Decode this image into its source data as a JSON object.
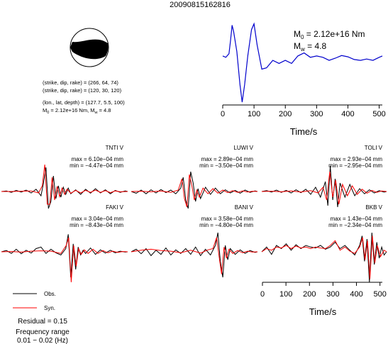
{
  "event_id": "20090815162816",
  "mechanism": {
    "line1": "(strike, dip, rake) = (266, 64, 74)",
    "line2": "(strike, dip, rake) = (120, 30, 120)",
    "line3": "(lon., lat, depth) = (127.7, 5.5, 100)",
    "line4_m0": "M",
    "line4_m0_sub": "0",
    "line4_m0_rest": " = 2.12e+16 Nm, M",
    "line4_mw_sub": "w",
    "line4_mw_rest": " = 4.8"
  },
  "stf": {
    "m0_label": "M",
    "m0_sub": "0",
    "m0_rest": " = 2.12e+16 Nm",
    "mw_label": "M",
    "mw_sub": "w",
    "mw_rest": " = 4.8",
    "xlabel": "Time/s",
    "xticks": [
      "0",
      "100",
      "200",
      "300",
      "400",
      "500"
    ]
  },
  "bottom_axis": {
    "xlabel": "Time/s",
    "xticks": [
      "0",
      "100",
      "200",
      "300",
      "400",
      "500"
    ]
  },
  "legend": {
    "obs_label": "Obs.",
    "syn_label": "Syn.",
    "residual": "Residual = 0.15",
    "freq_title": "Frequency range",
    "freq_value": "0.01 − 0.02 (Hz)"
  },
  "colors": {
    "observed": "#000000",
    "synthetic": "#ff0000",
    "stf_line": "#0000cc",
    "beachball_fill": "#000000"
  },
  "stations": [
    {
      "name": "TNTI V",
      "max": "max = 6.10e−04 mm",
      "min": "min = −4.47e−04 mm"
    },
    {
      "name": "LUWI V",
      "max": "max = 2.89e−04 mm",
      "min": "min = −3.50e−04 mm"
    },
    {
      "name": "TOLI V",
      "max": "max = 2.93e−04 mm",
      "min": "min = −2.95e−04 mm"
    },
    {
      "name": "FAKI V",
      "max": "max = 3.04e−04 mm",
      "min": "min = −8.43e−04 mm"
    },
    {
      "name": "BANI V",
      "max": "max = 3.58e−04 mm",
      "min": "min = −4.80e−04 mm"
    },
    {
      "name": "BKB V",
      "max": "max = 1.43e−04 mm",
      "min": "min = −2.34e−04 mm"
    }
  ],
  "chart_data": [
    {
      "type": "line",
      "title": "",
      "xlabel": "Time/s",
      "ylabel": "",
      "xlim": [
        0,
        510
      ],
      "ylim": [
        -1.0,
        1.0
      ],
      "grid": false,
      "series": [
        {
          "x": [
            0,
            10,
            20,
            25,
            30,
            35,
            45,
            55,
            62,
            70,
            80,
            92,
            100,
            110,
            125,
            140,
            160,
            180,
            200,
            220,
            240,
            260,
            280,
            300,
            320,
            340,
            360,
            380,
            400,
            420,
            440,
            460,
            480,
            500,
            510
          ],
          "values": [
            0.05,
            0.02,
            0.1,
            0.4,
            0.75,
            0.6,
            0.15,
            -0.6,
            -1.0,
            -0.6,
            0.05,
            0.65,
            0.78,
            0.3,
            -0.25,
            -0.22,
            -0.05,
            -0.12,
            -0.05,
            -0.12,
            0.05,
            0.12,
            0.02,
            0.05,
            0.02,
            -0.05,
            0.0,
            0.06,
            0.03,
            -0.03,
            -0.05,
            -0.02,
            -0.05,
            0.02,
            0.05
          ]
        }
      ]
    },
    {
      "type": "line",
      "title": "TNTI V",
      "xlim": [
        0,
        510
      ],
      "ylim": [
        -1,
        1
      ],
      "series": [
        {
          "name": "Obs.",
          "x": [
            0,
            20,
            40,
            60,
            80,
            100,
            120,
            140,
            160,
            170,
            180,
            190,
            200,
            210,
            220,
            230,
            240,
            250,
            260,
            270,
            280,
            300,
            320,
            340,
            360,
            380,
            400,
            420,
            440,
            460,
            480,
            500,
            510
          ],
          "values": [
            0.0,
            0.02,
            -0.03,
            0.04,
            -0.02,
            0.05,
            -0.05,
            0.08,
            -0.15,
            0.3,
            0.85,
            -0.6,
            -0.35,
            0.55,
            -0.25,
            0.2,
            -0.2,
            0.15,
            -0.1,
            0.12,
            -0.08,
            0.06,
            -0.1,
            0.08,
            -0.06,
            0.1,
            -0.05,
            0.06,
            -0.08,
            0.04,
            -0.03,
            0.02,
            0.0
          ]
        },
        {
          "name": "Syn.",
          "x": [
            0,
            40,
            80,
            120,
            150,
            165,
            175,
            185,
            195,
            205,
            215,
            225,
            235,
            245,
            255,
            265,
            280,
            300,
            320,
            340,
            360,
            380,
            400,
            420,
            440,
            460,
            480,
            510
          ],
          "values": [
            0.0,
            0.0,
            0.01,
            0.02,
            -0.05,
            0.2,
            0.95,
            -0.45,
            -0.45,
            0.5,
            -0.3,
            0.18,
            -0.18,
            0.12,
            -0.1,
            0.08,
            -0.06,
            0.04,
            -0.05,
            0.04,
            -0.03,
            0.05,
            -0.03,
            0.03,
            -0.04,
            0.02,
            -0.01,
            0.0
          ]
        }
      ]
    },
    {
      "type": "line",
      "title": "LUWI V",
      "xlim": [
        0,
        510
      ],
      "ylim": [
        -1,
        1
      ],
      "series": [
        {
          "name": "Obs.",
          "x": [
            0,
            20,
            40,
            60,
            80,
            100,
            120,
            140,
            160,
            180,
            200,
            210,
            220,
            230,
            240,
            250,
            260,
            270,
            280,
            300,
            320,
            340,
            360,
            380,
            400,
            420,
            440,
            460,
            480,
            500,
            510
          ],
          "values": [
            0.0,
            -0.06,
            0.05,
            -0.08,
            0.06,
            -0.05,
            0.07,
            -0.04,
            0.05,
            -0.08,
            0.12,
            0.5,
            -0.3,
            -0.6,
            0.7,
            0.3,
            -0.35,
            0.1,
            -0.25,
            0.15,
            -0.1,
            0.12,
            -0.08,
            0.06,
            -0.05,
            0.04,
            -0.06,
            0.05,
            -0.03,
            0.02,
            0.0
          ]
        },
        {
          "name": "Syn.",
          "x": [
            0,
            40,
            80,
            120,
            160,
            190,
            205,
            215,
            225,
            235,
            245,
            255,
            265,
            275,
            290,
            310,
            330,
            350,
            370,
            390,
            410,
            430,
            450,
            470,
            490,
            510
          ],
          "values": [
            0.0,
            0.01,
            -0.01,
            0.02,
            -0.03,
            0.05,
            0.45,
            -0.25,
            -0.55,
            0.6,
            0.2,
            -0.3,
            0.05,
            -0.2,
            0.12,
            -0.08,
            0.1,
            -0.06,
            0.05,
            -0.04,
            0.03,
            -0.03,
            0.02,
            -0.02,
            0.01,
            0.0
          ]
        }
      ]
    },
    {
      "type": "line",
      "title": "TOLI V",
      "xlim": [
        0,
        510
      ],
      "ylim": [
        -1,
        1
      ],
      "series": [
        {
          "name": "Obs.",
          "x": [
            0,
            20,
            40,
            60,
            80,
            100,
            120,
            140,
            160,
            180,
            200,
            220,
            240,
            260,
            270,
            280,
            290,
            300,
            310,
            320,
            340,
            360,
            380,
            400,
            420,
            440,
            460,
            480,
            500,
            510
          ],
          "values": [
            0.0,
            0.03,
            -0.02,
            0.05,
            -0.03,
            0.04,
            -0.05,
            0.06,
            -0.04,
            0.08,
            -0.1,
            0.15,
            -0.2,
            0.35,
            -0.5,
            0.9,
            -0.3,
            0.45,
            -0.55,
            0.3,
            -0.2,
            0.25,
            -0.15,
            0.1,
            -0.08,
            0.06,
            -0.05,
            0.03,
            -0.02,
            0.0
          ]
        },
        {
          "name": "Syn.",
          "x": [
            0,
            40,
            80,
            120,
            160,
            200,
            230,
            250,
            265,
            278,
            290,
            302,
            315,
            330,
            350,
            370,
            390,
            410,
            430,
            450,
            470,
            490,
            510
          ],
          "values": [
            0.0,
            0.01,
            -0.01,
            0.02,
            -0.02,
            0.03,
            -0.05,
            0.15,
            -0.3,
            0.7,
            -0.2,
            0.4,
            -0.45,
            0.25,
            -0.15,
            0.2,
            -0.1,
            0.08,
            -0.06,
            0.04,
            -0.03,
            0.02,
            0.0
          ]
        }
      ]
    },
    {
      "type": "line",
      "title": "FAKI V",
      "xlim": [
        0,
        510
      ],
      "ylim": [
        -1,
        1
      ],
      "series": [
        {
          "name": "Obs.",
          "x": [
            0,
            20,
            40,
            60,
            80,
            100,
            120,
            140,
            160,
            180,
            200,
            220,
            240,
            260,
            270,
            280,
            290,
            300,
            310,
            320,
            330,
            340,
            360,
            380,
            400,
            420,
            440,
            460,
            480,
            500,
            510
          ],
          "values": [
            0.0,
            0.04,
            -0.05,
            0.08,
            -0.06,
            0.05,
            -0.04,
            0.1,
            0.15,
            -0.05,
            0.08,
            -0.03,
            -0.1,
            0.1,
            0.55,
            -0.8,
            0.25,
            -0.55,
            0.15,
            -0.1,
            0.05,
            -0.05,
            0.12,
            -0.08,
            0.06,
            -0.04,
            0.05,
            -0.03,
            0.02,
            -0.01,
            0.0
          ]
        },
        {
          "name": "Syn.",
          "x": [
            0,
            40,
            80,
            120,
            160,
            200,
            240,
            262,
            272,
            282,
            292,
            302,
            312,
            322,
            335,
            350,
            370,
            390,
            410,
            430,
            450,
            470,
            490,
            510
          ],
          "values": [
            0.0,
            0.01,
            -0.01,
            0.02,
            0.03,
            0.02,
            -0.05,
            0.2,
            0.45,
            -0.95,
            0.2,
            -0.45,
            0.1,
            -0.08,
            0.06,
            -0.05,
            0.08,
            -0.05,
            0.04,
            -0.03,
            0.02,
            -0.02,
            0.01,
            0.0
          ]
        }
      ]
    },
    {
      "type": "line",
      "title": "BANI V",
      "xlim": [
        0,
        510
      ],
      "ylim": [
        -1,
        1
      ],
      "series": [
        {
          "name": "Obs.",
          "x": [
            0,
            20,
            40,
            60,
            80,
            100,
            120,
            140,
            160,
            180,
            200,
            220,
            240,
            260,
            280,
            300,
            320,
            340,
            350,
            360,
            370,
            380,
            390,
            400,
            420,
            440,
            460,
            480,
            500,
            510
          ],
          "values": [
            0.0,
            0.08,
            -0.06,
            0.1,
            -0.12,
            0.05,
            -0.08,
            0.12,
            -0.1,
            0.06,
            -0.05,
            0.1,
            -0.08,
            0.15,
            -0.12,
            0.08,
            -0.1,
            0.2,
            0.6,
            -0.3,
            -0.8,
            0.2,
            -0.25,
            0.1,
            -0.08,
            0.06,
            -0.05,
            0.04,
            -0.02,
            0.0
          ]
        },
        {
          "name": "Syn.",
          "x": [
            0,
            40,
            80,
            120,
            160,
            200,
            240,
            280,
            310,
            330,
            345,
            355,
            365,
            375,
            385,
            395,
            410,
            430,
            450,
            470,
            490,
            510
          ],
          "values": [
            0.0,
            0.05,
            0.08,
            0.04,
            0.02,
            -0.03,
            0.05,
            -0.04,
            0.06,
            0.1,
            0.45,
            -0.15,
            -0.7,
            0.15,
            -0.2,
            0.08,
            -0.05,
            0.04,
            -0.03,
            0.02,
            -0.01,
            0.0
          ]
        }
      ]
    },
    {
      "type": "line",
      "title": "BKB V",
      "xlim": [
        0,
        510
      ],
      "ylim": [
        -1,
        1
      ],
      "series": [
        {
          "name": "Obs.",
          "x": [
            0,
            20,
            40,
            60,
            80,
            100,
            120,
            140,
            160,
            180,
            200,
            220,
            240,
            260,
            280,
            300,
            320,
            340,
            360,
            380,
            400,
            410,
            420,
            430,
            440,
            450,
            460,
            470,
            480,
            490,
            500,
            510
          ],
          "values": [
            0.0,
            0.15,
            -0.08,
            0.2,
            0.1,
            0.25,
            0.05,
            0.22,
            0.1,
            0.2,
            0.15,
            0.12,
            0.2,
            0.08,
            0.15,
            0.3,
            0.1,
            0.2,
            0.05,
            -0.1,
            0.2,
            0.5,
            -0.3,
            0.4,
            -0.95,
            0.6,
            -0.4,
            0.3,
            -0.2,
            0.15,
            -0.1,
            0.0
          ]
        },
        {
          "name": "Syn.",
          "x": [
            0,
            20,
            40,
            60,
            80,
            100,
            120,
            140,
            160,
            180,
            200,
            220,
            240,
            260,
            280,
            300,
            320,
            340,
            360,
            380,
            400,
            412,
            422,
            432,
            442,
            452,
            462,
            472,
            485,
            500,
            510
          ],
          "values": [
            0.0,
            0.1,
            0.05,
            0.15,
            0.12,
            0.2,
            0.1,
            0.18,
            0.12,
            0.15,
            0.1,
            0.15,
            0.12,
            0.1,
            0.2,
            0.35,
            0.05,
            0.15,
            0.02,
            -0.05,
            0.15,
            0.45,
            -0.25,
            0.35,
            -0.85,
            0.5,
            -0.35,
            0.2,
            -0.15,
            0.05,
            0.0
          ]
        }
      ]
    }
  ]
}
